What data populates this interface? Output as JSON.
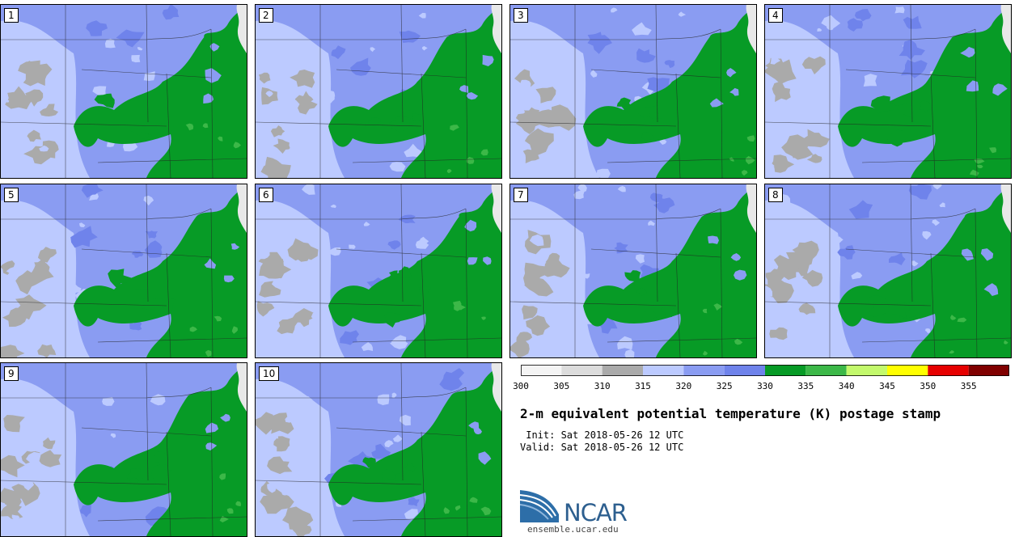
{
  "stamps": [
    {
      "label": "1"
    },
    {
      "label": "2"
    },
    {
      "label": "3"
    },
    {
      "label": "4"
    },
    {
      "label": "5"
    },
    {
      "label": "6"
    },
    {
      "label": "7"
    },
    {
      "label": "8"
    },
    {
      "label": "9"
    },
    {
      "label": "10"
    }
  ],
  "legend": {
    "colors": [
      "#f4f4f4",
      "#dcdcdc",
      "#aaaaaa",
      "#bccaff",
      "#8a9cf2",
      "#6f83eb",
      "#079b26",
      "#3cb848",
      "#c3f96c",
      "#ffff00",
      "#e60000",
      "#800000"
    ],
    "ticks": [
      "300",
      "305",
      "310",
      "315",
      "320",
      "325",
      "330",
      "335",
      "340",
      "345",
      "350",
      "355"
    ]
  },
  "title": "2-m equivalent potential temperature (K) postage stamp",
  "init_text": " Init: Sat 2018-05-26 12 UTC",
  "valid_text": "Valid: Sat 2018-05-26 12 UTC",
  "logo": {
    "text": "NCAR",
    "url": "ensemble.ucar.edu"
  }
}
